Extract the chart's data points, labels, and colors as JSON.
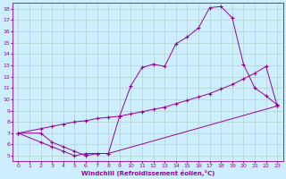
{
  "xlabel": "Windchill (Refroidissement éolien,°C)",
  "bg_color": "#cceeff",
  "line_color": "#990099",
  "grid_color": "#aaccbb",
  "xlim": [
    -0.5,
    23.5
  ],
  "ylim": [
    4.5,
    18.5
  ],
  "xticks": [
    0,
    1,
    2,
    3,
    4,
    5,
    6,
    7,
    8,
    9,
    10,
    11,
    12,
    13,
    14,
    15,
    16,
    17,
    18,
    19,
    20,
    21,
    22,
    23
  ],
  "yticks": [
    5,
    6,
    7,
    8,
    9,
    10,
    11,
    12,
    13,
    14,
    15,
    16,
    17,
    18
  ],
  "line1_x": [
    0,
    2,
    3,
    4,
    5,
    6,
    7,
    8,
    9,
    10,
    11,
    12,
    13,
    14,
    15,
    16,
    17,
    18,
    19,
    20,
    21,
    22,
    23
  ],
  "line1_y": [
    7,
    7,
    6.2,
    5.8,
    5.4,
    5.0,
    5.2,
    5.2,
    8.5,
    11.2,
    12.8,
    13.1,
    12.9,
    14.9,
    15.5,
    16.3,
    18.1,
    18.2,
    17.2,
    13.1,
    11.0,
    10.3,
    9.5
  ],
  "line2_x": [
    0,
    2,
    3,
    4,
    5,
    6,
    7,
    8,
    9,
    10,
    11,
    12,
    13,
    14,
    15,
    16,
    17,
    18,
    19,
    20,
    21,
    22,
    23
  ],
  "line2_y": [
    7,
    7.4,
    7.6,
    7.8,
    8.0,
    8.1,
    8.3,
    8.4,
    8.5,
    8.7,
    8.9,
    9.1,
    9.3,
    9.6,
    9.9,
    10.2,
    10.5,
    10.9,
    11.3,
    11.8,
    12.3,
    12.9,
    9.4
  ],
  "line3_x": [
    0,
    2,
    3,
    4,
    5,
    6,
    7,
    8,
    23
  ],
  "line3_y": [
    7,
    6.2,
    5.8,
    5.4,
    5.0,
    5.2,
    5.2,
    5.2,
    9.4
  ]
}
